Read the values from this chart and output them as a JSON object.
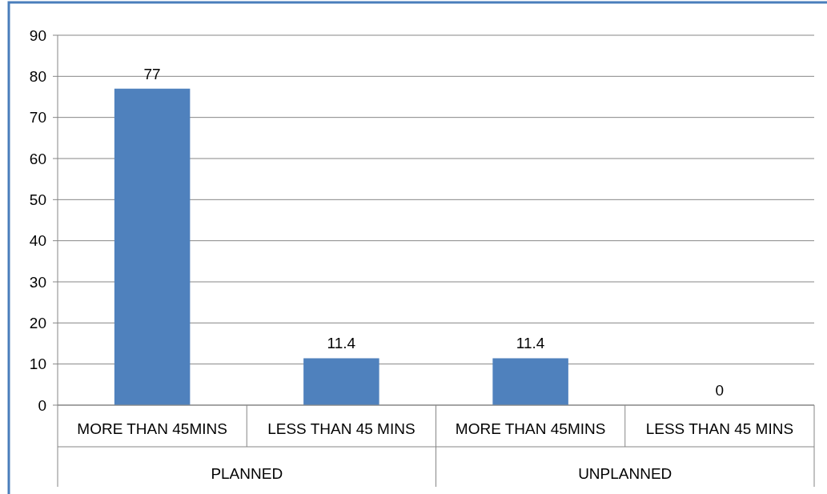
{
  "chart_data": {
    "type": "bar",
    "categories": [
      "MORE THAN 45MINS",
      "LESS THAN 45 MINS",
      "MORE THAN 45MINS",
      "LESS THAN 45 MINS"
    ],
    "values": [
      77,
      11.4,
      11.4,
      0
    ],
    "color": "#4f81bd",
    "ylim": [
      0,
      90
    ],
    "yticks": [
      0,
      10,
      20,
      30,
      40,
      50,
      60,
      70,
      80,
      90
    ],
    "grid": "y",
    "data_labels": true,
    "annotations": [
      "PLANNED",
      "UNPLANNED"
    ]
  }
}
